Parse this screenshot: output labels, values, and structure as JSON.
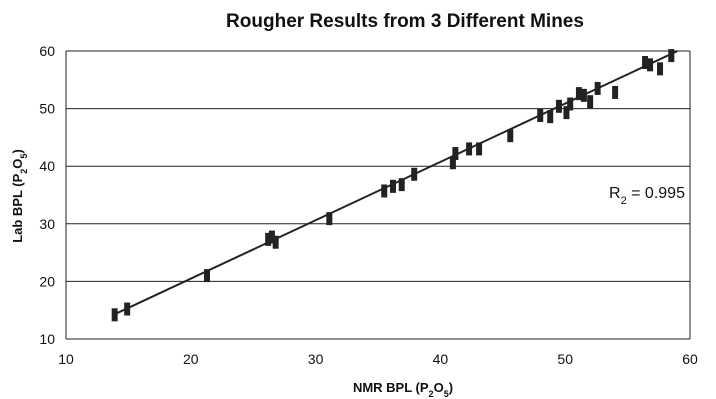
{
  "chart_data": {
    "type": "scatter",
    "title": "Rougher Results from 3 Different Mines",
    "xlabel": {
      "main": "NMR BPL (P",
      "sub1": "2",
      "mid": "O",
      "sub2": "5",
      "end": ")"
    },
    "ylabel": {
      "main": "Lab BPL (P",
      "sub1": "2",
      "mid": "O",
      "sub2": "5",
      "end": ")"
    },
    "annotation": {
      "main": "R",
      "sub": "2",
      "rest": " = 0.995"
    },
    "xlim": [
      10,
      60
    ],
    "ylim": [
      10,
      60
    ],
    "xticks": [
      10,
      20,
      30,
      40,
      50,
      60
    ],
    "yticks": [
      10,
      20,
      30,
      40,
      50,
      60
    ],
    "grid": "horizontal",
    "fit_line": {
      "x": [
        13.8,
        59.0
      ],
      "y": [
        14.2,
        60.0
      ]
    },
    "series": [
      {
        "marker": "bar",
        "color": "#222222",
        "points": [
          [
            13.9,
            14.2
          ],
          [
            14.9,
            15.2
          ],
          [
            21.3,
            21.0
          ],
          [
            26.2,
            27.3
          ],
          [
            26.5,
            27.7
          ],
          [
            26.8,
            26.8
          ],
          [
            31.1,
            30.9
          ],
          [
            35.5,
            35.7
          ],
          [
            36.2,
            36.5
          ],
          [
            36.9,
            36.8
          ],
          [
            37.9,
            38.6
          ],
          [
            41.0,
            40.6
          ],
          [
            41.2,
            42.2
          ],
          [
            42.3,
            43.0
          ],
          [
            43.1,
            43.0
          ],
          [
            45.6,
            45.3
          ],
          [
            48.0,
            48.8
          ],
          [
            48.8,
            48.6
          ],
          [
            49.5,
            50.4
          ],
          [
            50.1,
            49.3
          ],
          [
            50.4,
            50.8
          ],
          [
            51.1,
            52.6
          ],
          [
            51.5,
            52.3
          ],
          [
            52.0,
            51.2
          ],
          [
            52.6,
            53.5
          ],
          [
            54.0,
            52.8
          ],
          [
            56.4,
            58.0
          ],
          [
            56.8,
            57.6
          ],
          [
            57.6,
            56.9
          ],
          [
            58.5,
            59.2
          ]
        ]
      }
    ]
  }
}
